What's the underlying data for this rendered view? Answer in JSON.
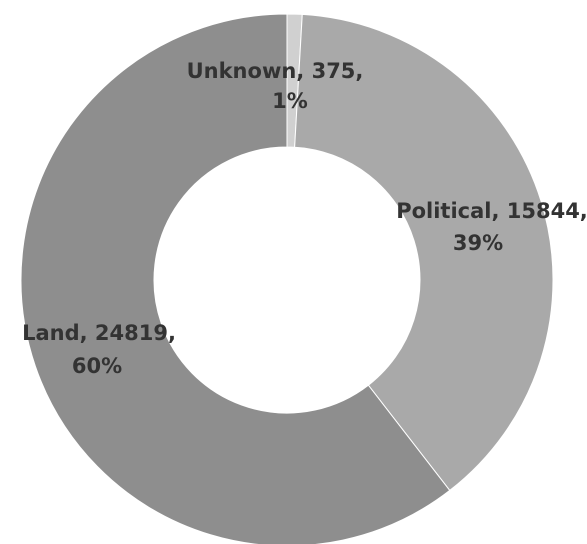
{
  "chart_data": {
    "type": "pie",
    "donut": true,
    "title": "",
    "legend": "none",
    "slices": [
      {
        "name": "Unknown",
        "value": 375,
        "percent": "1%",
        "label_line1": "Unknown, 375,",
        "label_line2": "1%",
        "color": "#d0d0d0"
      },
      {
        "name": "Political",
        "value": 15844,
        "percent": "39%",
        "label_line1": "Political, 15844,",
        "label_line2": "39%",
        "color": "#a9a9a9"
      },
      {
        "name": "Land",
        "value": 24819,
        "percent": "60%",
        "label_line1": "Land, 24819,",
        "label_line2": "60%",
        "color": "#8e8e8e"
      }
    ]
  }
}
